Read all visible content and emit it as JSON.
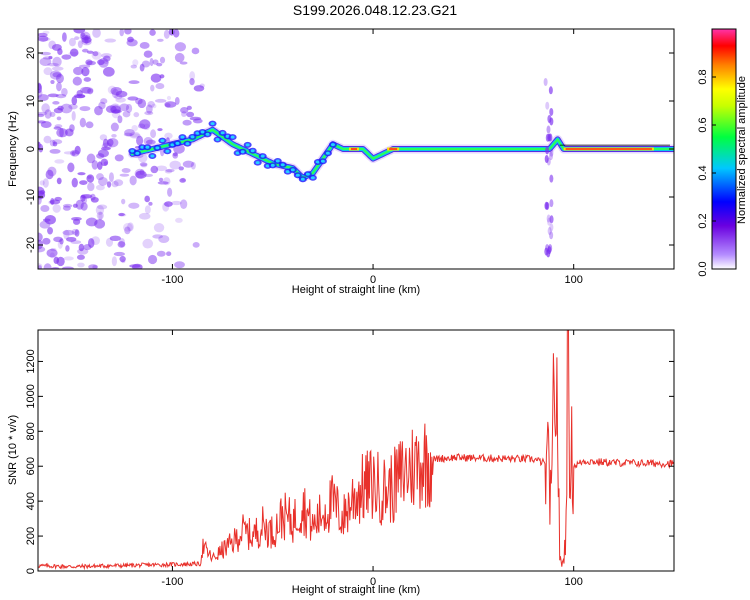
{
  "figure": {
    "title": "S199.2026.048.12.23.G21"
  },
  "chart_data": [
    {
      "type": "heatmap",
      "title": "S199.2026.048.12.23.G21",
      "xlabel": "Height of straight line (km)",
      "ylabel": "Frequency (Hz)",
      "xlim": [
        -167,
        150
      ],
      "ylim": [
        -25,
        25
      ],
      "xticks": [
        -100,
        0,
        100
      ],
      "yticks": [
        -20,
        -10,
        0,
        10,
        20
      ],
      "grid": false,
      "colorbar": {
        "label": "Normalized spectral amplitude",
        "range": [
          0.0,
          1.0
        ],
        "ticks": [
          0.0,
          0.2,
          0.4,
          0.6,
          0.8
        ],
        "colormap": [
          "#ffffff",
          "#6a00e0",
          "#0000ff",
          "#00c8ff",
          "#00ff40",
          "#ffff00",
          "#ff8000",
          "#ff0000",
          "#ff00aa"
        ]
      },
      "ridge": {
        "x": [
          -120,
          -110,
          -100,
          -90,
          -80,
          -70,
          -60,
          -50,
          -40,
          -35,
          -30,
          -25,
          -20,
          -15,
          -10,
          -5,
          0,
          5,
          10,
          20,
          40,
          60,
          80,
          85,
          88,
          92,
          95,
          100,
          120,
          150
        ],
        "y": [
          -1,
          0,
          1,
          2,
          4,
          1,
          -1,
          -3,
          -4,
          -6,
          -5,
          -2,
          1,
          0,
          0,
          0,
          -2,
          -1,
          0,
          0,
          0,
          0,
          0,
          0,
          0,
          2,
          0,
          0,
          0,
          0
        ]
      },
      "colors": {
        "noise": "#7a2cf0",
        "ridge_core": "#ff2a1a"
      }
    },
    {
      "type": "line",
      "xlabel": "Height of straight line (km)",
      "ylabel": "SNR (10 * v/v)",
      "xlim": [
        -167,
        150
      ],
      "ylim": [
        0,
        1380
      ],
      "xticks": [
        -100,
        0,
        100
      ],
      "yticks": [
        0,
        200,
        400,
        600,
        800,
        1000,
        1200
      ],
      "grid": false,
      "series": [
        {
          "color": "#e8302a",
          "x": [
            -167,
            -150,
            -130,
            -110,
            -90,
            -86,
            -85,
            -80,
            -75,
            -70,
            -65,
            -60,
            -55,
            -50,
            -45,
            -40,
            -35,
            -30,
            -25,
            -20,
            -15,
            -10,
            -5,
            0,
            5,
            10,
            15,
            20,
            25,
            30,
            40,
            60,
            80,
            85,
            88,
            89,
            90,
            91,
            92,
            93,
            94,
            95,
            96,
            97,
            98,
            100,
            105,
            120,
            150
          ],
          "y": [
            30,
            25,
            30,
            35,
            40,
            40,
            140,
            70,
            120,
            160,
            230,
            200,
            260,
            220,
            320,
            280,
            380,
            250,
            340,
            390,
            300,
            420,
            470,
            500,
            460,
            480,
            560,
            600,
            630,
            640,
            650,
            645,
            640,
            620,
            560,
            300,
            1000,
            1100,
            900,
            80,
            40,
            60,
            200,
            1300,
            700,
            600,
            630,
            620,
            615
          ]
        }
      ]
    }
  ]
}
